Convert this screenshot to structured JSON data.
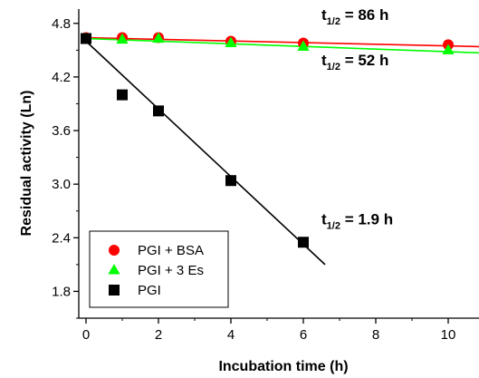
{
  "chart_data": {
    "type": "scatter",
    "xlabel": "Incubation time (h)",
    "ylabel": "Residual activity (Ln)",
    "xlim": [
      -0.2,
      10.85
    ],
    "ylim": [
      1.5,
      4.96
    ],
    "xticks": [
      "0",
      "2",
      "4",
      "6",
      "8",
      "10"
    ],
    "xtick_values": [
      0,
      2,
      4,
      6,
      8,
      10
    ],
    "yticks": [
      "1.8",
      "2.4",
      "3.0",
      "3.6",
      "4.2",
      "4.8"
    ],
    "ytick_values": [
      1.8,
      2.4,
      3.0,
      3.6,
      4.2,
      4.8
    ],
    "series": [
      {
        "name": "PGI + BSA",
        "marker": "circle",
        "color": "#ff0000",
        "x": [
          0,
          1,
          2,
          4,
          6,
          10
        ],
        "y": [
          4.64,
          4.64,
          4.64,
          4.6,
          4.58,
          4.56
        ],
        "fit": {
          "x": [
            0,
            10.85
          ],
          "y": [
            4.64,
            4.54
          ],
          "color": "#ff0000"
        }
      },
      {
        "name": "PGI + 3 Es",
        "marker": "triangle",
        "color": "#00ff00",
        "x": [
          0,
          1,
          2,
          4,
          6,
          10
        ],
        "y": [
          4.63,
          4.62,
          4.63,
          4.58,
          4.54,
          4.5
        ],
        "fit": {
          "x": [
            0,
            10.85
          ],
          "y": [
            4.63,
            4.47
          ],
          "color": "#00ff00"
        }
      },
      {
        "name": "PGI",
        "marker": "square",
        "color": "#000000",
        "x": [
          0,
          1,
          2,
          4,
          6
        ],
        "y": [
          4.63,
          4.0,
          3.82,
          3.04,
          2.35
        ],
        "fit": {
          "x": [
            0,
            6.6
          ],
          "y": [
            4.6,
            2.1
          ],
          "color": "#000000"
        }
      }
    ],
    "annotations": [
      {
        "main": "t",
        "sub": "1/2",
        "rest": " = 86 h",
        "x": 6.5,
        "y": 4.84
      },
      {
        "main": "t",
        "sub": "1/2",
        "rest": " = 52 h",
        "x": 6.5,
        "y": 4.33
      },
      {
        "main": "t",
        "sub": "1/2",
        "rest": " = 1.9 h",
        "x": 6.5,
        "y": 2.55
      }
    ],
    "legend": {
      "placement": "bottom-left"
    },
    "grid": false
  }
}
